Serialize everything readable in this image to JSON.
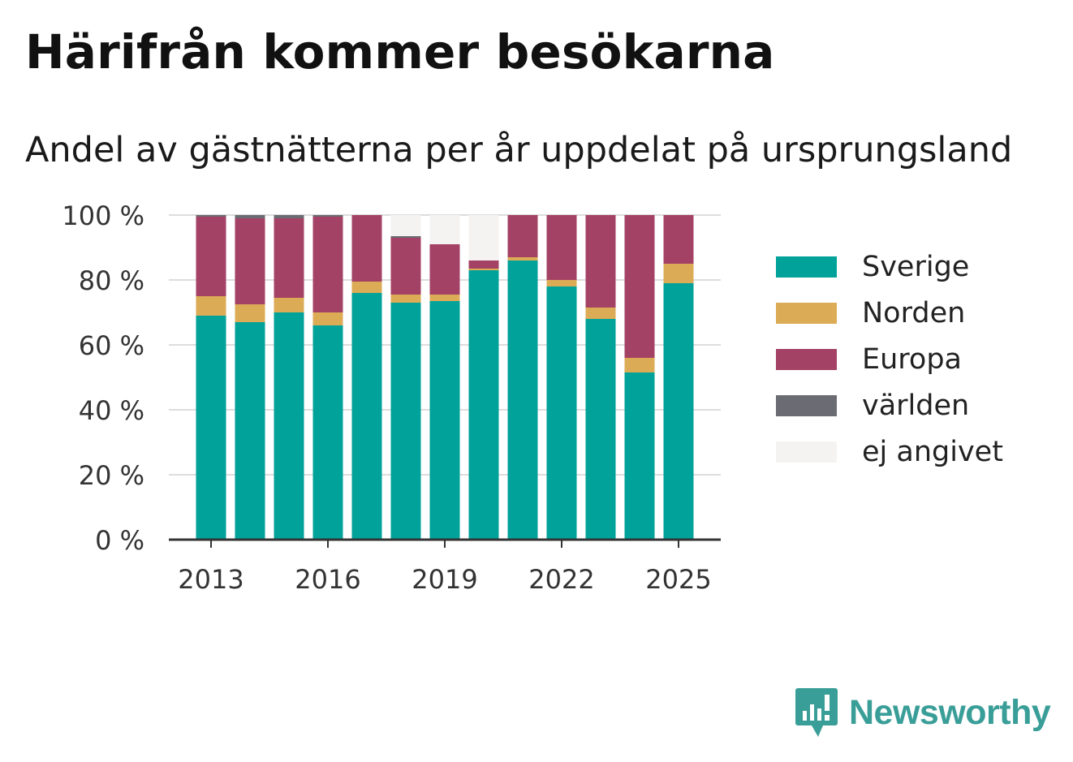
{
  "title": "Härifrån kommer besökarna",
  "subtitle": "Andel av gästnätterna per år uppdelat på ursprungsland",
  "brand": {
    "name": "Newsworthy",
    "color": "#3a9e98"
  },
  "chart_data": {
    "type": "bar",
    "stacked": true,
    "categories": [
      "2013",
      "2014",
      "2015",
      "2016",
      "2017",
      "2018",
      "2019",
      "2020",
      "2021",
      "2022",
      "2023",
      "2024",
      "2025"
    ],
    "x_tick_labels": [
      "2013",
      "2016",
      "2019",
      "2022",
      "2025"
    ],
    "y_ticks": [
      0,
      20,
      40,
      60,
      80,
      100
    ],
    "y_tick_labels": [
      "0 %",
      "20 %",
      "40 %",
      "60 %",
      "80 %",
      "100 %"
    ],
    "ylim": [
      0,
      100
    ],
    "grid": "horizontal",
    "legend_position": "right",
    "series": [
      {
        "name": "Sverige",
        "color": "#00a29a",
        "values": [
          69,
          67,
          70,
          66,
          76,
          73,
          73.5,
          83,
          86,
          78,
          68,
          51.5,
          79
        ]
      },
      {
        "name": "Norden",
        "color": "#dcab56",
        "values": [
          6,
          5.5,
          4.5,
          4,
          3.5,
          2.5,
          2,
          0.5,
          1,
          2,
          3.5,
          4.5,
          6
        ]
      },
      {
        "name": "Europa",
        "color": "#a44266",
        "values": [
          24.5,
          26.5,
          24.5,
          29.5,
          20.5,
          17.5,
          15.5,
          2.5,
          13,
          20,
          28.5,
          44,
          15
        ]
      },
      {
        "name": "världen",
        "color": "#6b6b73",
        "values": [
          0.5,
          1,
          1,
          0.5,
          0,
          0.5,
          0,
          0,
          0,
          0,
          0,
          0,
          0
        ]
      },
      {
        "name": "ej angivet",
        "color": "#f4f3f2",
        "values": [
          0,
          0,
          0,
          0,
          0,
          6.5,
          9,
          14,
          0,
          0,
          0,
          0,
          0
        ]
      }
    ]
  }
}
